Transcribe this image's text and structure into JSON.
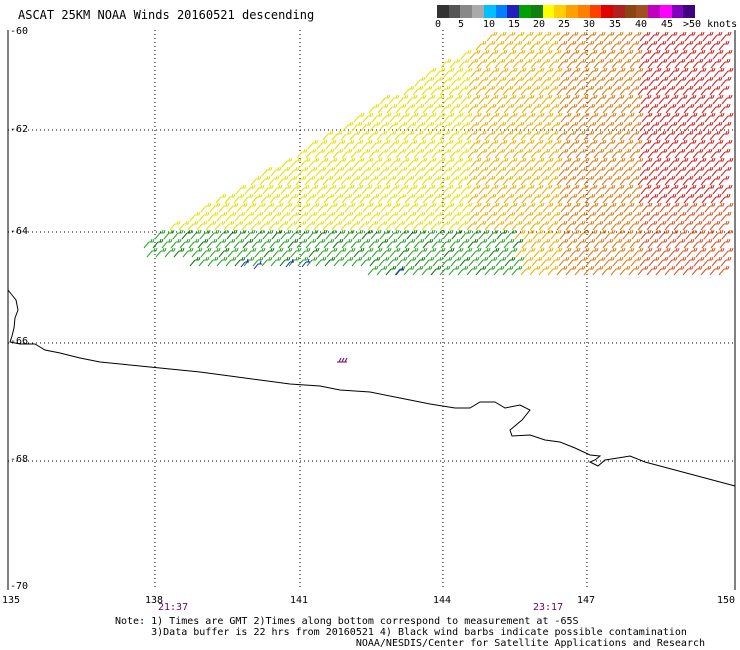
{
  "title": "ASCAT 25KM NOAA Winds 20160521 descending",
  "legend": {
    "labels": [
      "0",
      "5",
      "10",
      "15",
      "20",
      "25",
      "30",
      "35",
      "40",
      "45",
      ">50 knots"
    ],
    "colors": [
      "#333333",
      "#555555",
      "#888888",
      "#aaaaaa",
      "#00c0ff",
      "#0080ff",
      "#2020c0",
      "#00a000",
      "#108010",
      "#ffff00",
      "#ffd000",
      "#ffa000",
      "#ff8000",
      "#ff4000",
      "#e00000",
      "#b02020",
      "#8b4513",
      "#a05020",
      "#c000c0",
      "#ff00ff",
      "#8000c0",
      "#400080"
    ]
  },
  "axes": {
    "lat_labels": [
      "-60",
      "-62",
      "-64",
      "-66",
      "-68",
      "-70"
    ],
    "lon_labels": [
      "135",
      "138",
      "141",
      "144",
      "147",
      "150"
    ]
  },
  "times": [
    "21:37",
    "23:17"
  ],
  "notes": {
    "line1": "Note: 1) Times are GMT 2)Times along bottom correspond to measurement at -65S",
    "line2": "      3)Data buffer is 22 hrs from 20160521 4) Black wind barbs indicate possible contamination",
    "line3": "                                        NOAA/NESDIS/Center for Satellite Applications and Research"
  }
}
